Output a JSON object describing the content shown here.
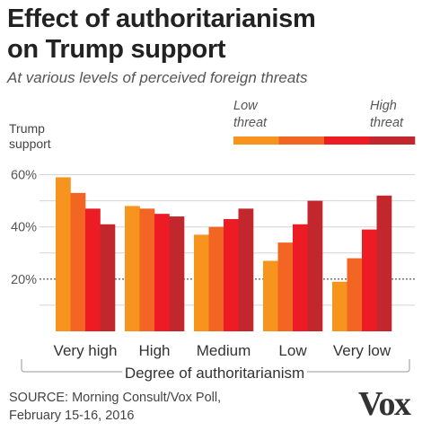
{
  "chart_data": {
    "type": "bar",
    "title": "Effect of authoritarianism on Trump support",
    "subtitle": "At various levels of perceived foreign threats",
    "ylabel": "Trump support",
    "xlabel": "Degree of authoritarianism",
    "categories": [
      "Very high",
      "High",
      "Medium",
      "Low",
      "Very low"
    ],
    "ylim": [
      0,
      65
    ],
    "ytick_values": [
      20,
      40,
      60
    ],
    "ytick_labels": [
      "20%",
      "40%",
      "60%"
    ],
    "reference_line": 20,
    "grid": true,
    "legend": {
      "placement": "top-right",
      "low_label": "Low threat",
      "high_label": "High threat"
    },
    "series": [
      {
        "color": "#f7941d",
        "values": [
          59,
          48,
          37,
          27,
          19
        ]
      },
      {
        "color": "#f26522",
        "values": [
          53,
          47,
          40,
          34,
          28
        ]
      },
      {
        "color": "#ed1c24",
        "values": [
          47,
          45,
          43,
          41,
          39
        ]
      },
      {
        "color": "#c1272d",
        "values": [
          41,
          44,
          47,
          50,
          52
        ]
      }
    ]
  },
  "source": {
    "line1": "SOURCE: Morning Consult/Vox Poll,",
    "line2": "February 15-16, 2016"
  },
  "brand": "Vox"
}
